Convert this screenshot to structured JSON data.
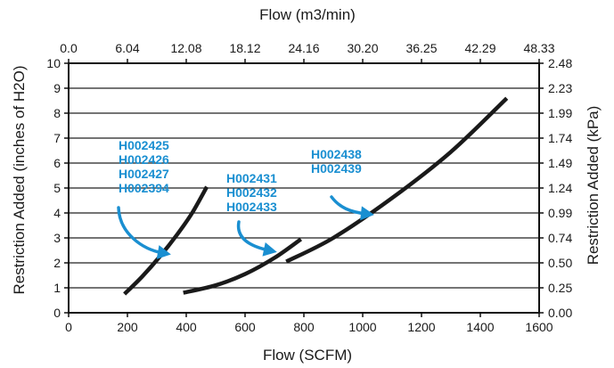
{
  "chart_data": {
    "type": "line",
    "title": "",
    "xlabel": "Flow (SCFM)",
    "x_top_label": "Flow (m3/min)",
    "ylabel": "Restriction Added  (inches of H2O)",
    "y_right_label": "Restriction Added (kPa)",
    "xlim": [
      0,
      1600
    ],
    "ylim": [
      0,
      10
    ],
    "x_ticks": [
      "0",
      "200",
      "400",
      "600",
      "800",
      "1000",
      "1200",
      "1400",
      "1600"
    ],
    "x_top_ticks": [
      "0.0",
      "6.04",
      "12.08",
      "18.12",
      "24.16",
      "30.20",
      "36.25",
      "42.29",
      "48.33"
    ],
    "y_ticks": [
      "0",
      "1",
      "2",
      "3",
      "4",
      "5",
      "6",
      "7",
      "8",
      "9",
      "10"
    ],
    "y_right_ticks": [
      "0.00",
      "0.25",
      "0.50",
      "0.74",
      "0.99",
      "1.24",
      "1.49",
      "1.74",
      "1.99",
      "2.23",
      "2.48"
    ],
    "grid": "horizontal",
    "line_color": "#1a1a1a",
    "annotation_color": "#1a8fd1",
    "series": [
      {
        "points": [
          [
            190,
            0.75
          ],
          [
            250,
            1.45
          ],
          [
            310,
            2.25
          ],
          [
            370,
            3.15
          ],
          [
            420,
            4.0
          ],
          [
            470,
            5.05
          ]
        ],
        "labels": [
          "H002425",
          "H002426",
          "H002427",
          "H002394"
        ]
      },
      {
        "points": [
          [
            390,
            0.8
          ],
          [
            500,
            1.1
          ],
          [
            600,
            1.55
          ],
          [
            700,
            2.2
          ],
          [
            790,
            2.95
          ]
        ],
        "labels": [
          "H002431",
          "H002432",
          "H002433"
        ]
      },
      {
        "points": [
          [
            740,
            2.05
          ],
          [
            900,
            3.0
          ],
          [
            1100,
            4.6
          ],
          [
            1300,
            6.45
          ],
          [
            1490,
            8.6
          ]
        ],
        "labels": [
          "H002438",
          "H002439"
        ]
      }
    ]
  }
}
